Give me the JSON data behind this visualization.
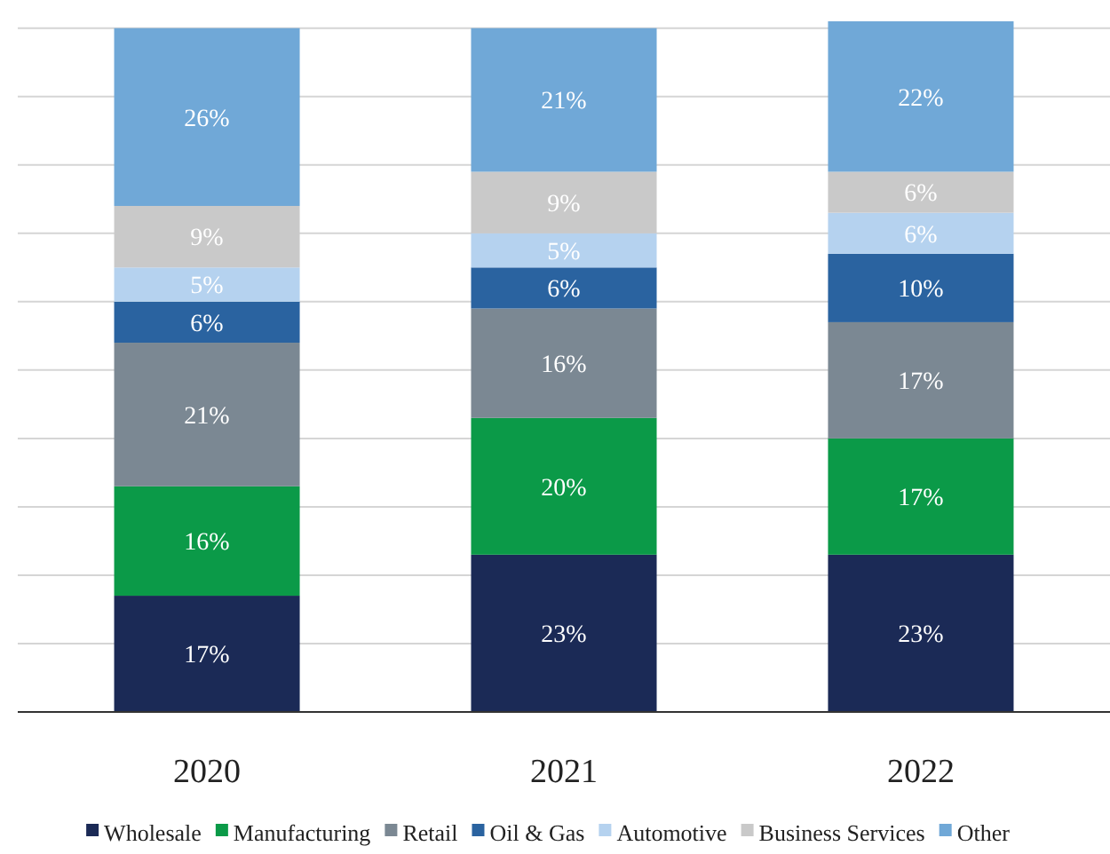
{
  "chart_data": {
    "type": "bar",
    "stacked": true,
    "categories": [
      "2020",
      "2021",
      "2022"
    ],
    "ylim": [
      0,
      101
    ],
    "yticks": [
      {
        "value": 0,
        "label": null
      },
      {
        "value": 10,
        "label": null
      },
      {
        "value": 20,
        "label": null
      },
      {
        "value": 30,
        "label": null
      },
      {
        "value": 40,
        "label": null
      },
      {
        "value": 50,
        "label": null
      },
      {
        "value": 60,
        "label": null
      },
      {
        "value": 70,
        "label": null
      },
      {
        "value": 80,
        "label": null
      },
      {
        "value": 90,
        "label": null
      },
      {
        "value": 100,
        "label": null
      }
    ],
    "grid": "y",
    "tick_labels": "x",
    "legend": "bottom",
    "series": [
      {
        "name": "Wholesale",
        "color": "#1b2a56",
        "values": [
          17,
          23,
          23
        ],
        "value_labels": [
          "17%",
          "23%",
          "23%"
        ]
      },
      {
        "name": "Manufacturing",
        "color": "#0b9a48",
        "values": [
          16,
          20,
          17
        ],
        "value_labels": [
          "16%",
          "20%",
          "17%"
        ]
      },
      {
        "name": "Retail",
        "color": "#7b8893",
        "values": [
          21,
          16,
          17
        ],
        "value_labels": [
          "21%",
          "16%",
          "17%"
        ]
      },
      {
        "name": "Oil & Gas",
        "color": "#2a63a0",
        "values": [
          6,
          6,
          10
        ],
        "value_labels": [
          "6%",
          "6%",
          "10%"
        ]
      },
      {
        "name": "Automotive",
        "color": "#b5d2ef",
        "values": [
          5,
          5,
          6
        ],
        "value_labels": [
          "5%",
          "5%",
          "6%"
        ]
      },
      {
        "name": "Business Services",
        "color": "#c9c9c9",
        "values": [
          9,
          9,
          6
        ],
        "value_labels": [
          "9%",
          "9%",
          "6%"
        ]
      },
      {
        "name": "Other",
        "color": "#70a8d7",
        "values": [
          26,
          21,
          22
        ],
        "value_labels": [
          "26%",
          "21%",
          "22%"
        ]
      }
    ]
  }
}
